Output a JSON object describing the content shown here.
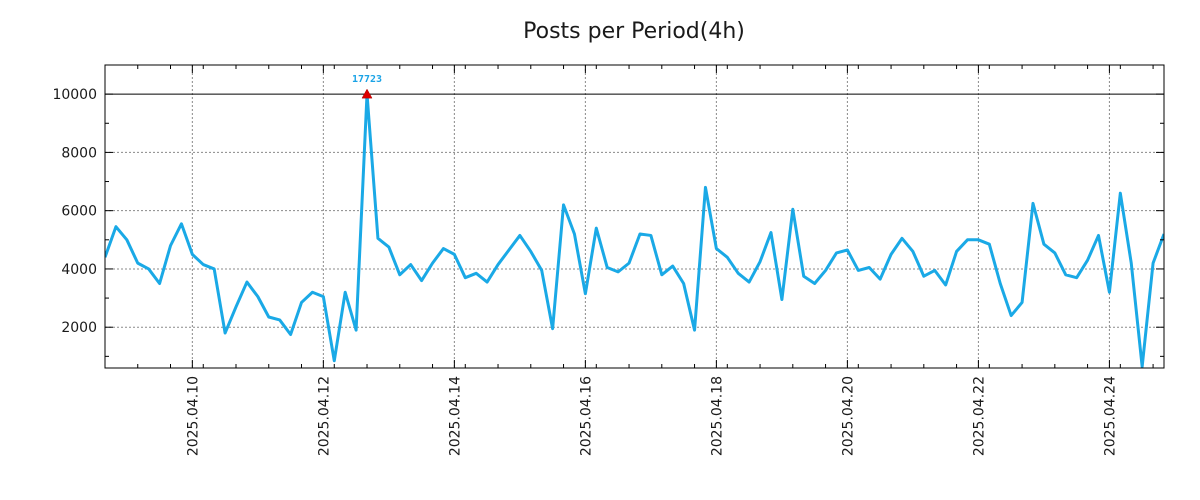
{
  "chart_data": {
    "type": "line",
    "title": "Posts per Period(4h)",
    "xlabel": "",
    "ylabel": "",
    "ylim": [
      600,
      11000
    ],
    "xlim": [
      0,
      97
    ],
    "grid": true,
    "yticks": [
      2000,
      4000,
      6000,
      8000,
      10000
    ],
    "xticks": [
      {
        "index": 8,
        "label": "2025.04.10"
      },
      {
        "index": 20,
        "label": "2025.04.12"
      },
      {
        "index": 32,
        "label": "2025.04.14"
      },
      {
        "index": 44,
        "label": "2025.04.16"
      },
      {
        "index": 56,
        "label": "2025.04.18"
      },
      {
        "index": 68,
        "label": "2025.04.20"
      },
      {
        "index": 80,
        "label": "2025.04.22"
      },
      {
        "index": 92,
        "label": "2025.04.24"
      }
    ],
    "reference_line": 10000,
    "clip_value": 10000,
    "annotation": {
      "index": 24,
      "label": "17723",
      "marker_color": "#dd0000"
    },
    "series": [
      {
        "name": "Posts",
        "color": "#1aa9e6",
        "values": [
          4400,
          5450,
          5000,
          4200,
          4000,
          3500,
          4800,
          5550,
          4500,
          4150,
          4000,
          1800,
          2700,
          3550,
          3050,
          2350,
          2250,
          1750,
          2850,
          3200,
          3050,
          850,
          3200,
          1900,
          17723,
          5050,
          4750,
          3800,
          4150,
          3600,
          4200,
          4700,
          4500,
          3700,
          3850,
          3550,
          4150,
          4650,
          5150,
          4600,
          3950,
          1950,
          6200,
          5200,
          3150,
          5400,
          4050,
          3900,
          4200,
          5200,
          5150,
          3800,
          4100,
          3500,
          1900,
          6800,
          4700,
          4400,
          3850,
          3550,
          4250,
          5250,
          2950,
          6050,
          3750,
          3500,
          3950,
          4550,
          4650,
          3950,
          4050,
          3650,
          4500,
          5050,
          4600,
          3750,
          3950,
          3450,
          4600,
          5000,
          5000,
          4850,
          3500,
          2400,
          2850,
          6250,
          4850,
          4550,
          3800,
          3700,
          4300,
          5150,
          3200,
          6600,
          4200,
          650,
          4200,
          5200
        ]
      }
    ]
  }
}
